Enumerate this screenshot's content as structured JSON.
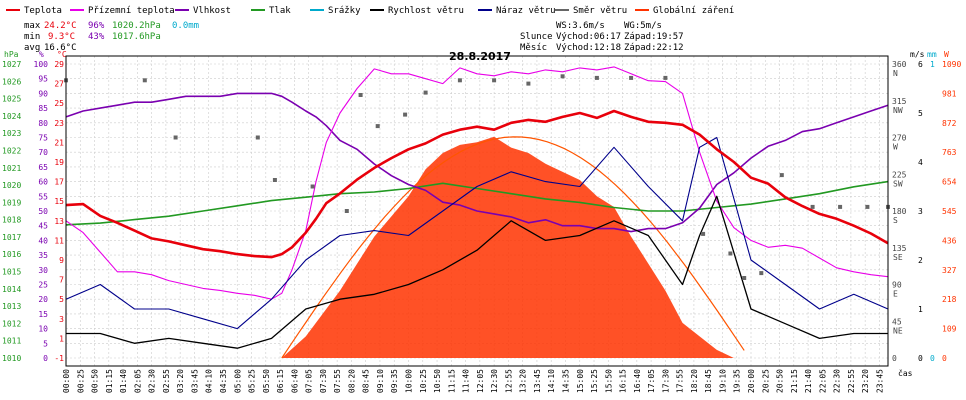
{
  "header": {
    "legend": [
      {
        "label": "Teplota",
        "color": "#e8000b"
      },
      {
        "label": "Přízemní teplota",
        "color": "#e800e8"
      },
      {
        "label": "Vlhkost",
        "color": "#7a00b0"
      },
      {
        "label": "Tlak",
        "color": "#229922"
      },
      {
        "label": "Srážky",
        "color": "#00aacc"
      },
      {
        "label": "Rychlost větru",
        "color": "#000000"
      },
      {
        "label": "Náraz větru",
        "color": "#00008b"
      },
      {
        "label": "Směr větru",
        "color": "#666666"
      },
      {
        "label": "Globální záření",
        "color": "#ff3300"
      }
    ],
    "stats": {
      "max": {
        "label": "max",
        "temp": "24.2°C",
        "hum": "96%",
        "press": "1020.2hPa",
        "rain": "0.0mm"
      },
      "min": {
        "label": "min",
        "temp": "9.3°C",
        "hum": "43%",
        "press": "1017.6hPa"
      },
      "avg": {
        "label": "avg",
        "temp": "16.6°C"
      }
    },
    "wind": {
      "ws": "WS:3.6m/s",
      "wg": "WG:5m/s"
    },
    "sun": {
      "label": "Slunce",
      "rise": "Východ:06:17",
      "set": "Západ:19:57"
    },
    "moon": {
      "label": "Měsíc",
      "rise": "Východ:12:18",
      "set": "Západ:22:12"
    }
  },
  "chart_data": {
    "type": "line",
    "title": "28.8.2017",
    "xlabel": "čas",
    "x_ticks": [
      "00:00",
      "00:25",
      "00:50",
      "01:15",
      "01:40",
      "02:05",
      "02:30",
      "02:55",
      "03:20",
      "03:45",
      "04:10",
      "04:35",
      "05:00",
      "05:25",
      "05:50",
      "06:15",
      "06:40",
      "07:05",
      "07:30",
      "07:55",
      "08:20",
      "08:45",
      "09:10",
      "09:35",
      "10:00",
      "10:25",
      "10:50",
      "11:15",
      "11:40",
      "12:05",
      "12:30",
      "12:55",
      "13:20",
      "13:45",
      "14:10",
      "14:35",
      "15:00",
      "15:25",
      "15:50",
      "16:15",
      "16:40",
      "17:05",
      "17:30",
      "17:55",
      "18:20",
      "18:45",
      "19:10",
      "19:35",
      "20:00",
      "20:25",
      "20:50",
      "21:15",
      "21:40",
      "22:05",
      "22:30",
      "22:55",
      "23:20",
      "23:45"
    ],
    "axes": {
      "pressure": {
        "unit": "hPa",
        "range": [
          1010,
          1027
        ],
        "ticks": [
          "1027",
          "1026",
          "1025",
          "1024",
          "1023",
          "1022",
          "1021",
          "1020",
          "1019",
          "1018",
          "1017",
          "1016",
          "1015",
          "1014",
          "1013",
          "1012",
          "1011",
          "1010"
        ]
      },
      "humidity": {
        "unit": "%",
        "range": [
          0,
          100
        ],
        "ticks": [
          "100",
          "95",
          "90",
          "85",
          "80",
          "75",
          "70",
          "65",
          "60",
          "55",
          "50",
          "45",
          "40",
          "35",
          "30",
          "25",
          "20",
          "15",
          "10",
          "5",
          "0"
        ]
      },
      "temperature": {
        "unit": "°C",
        "range": [
          -1,
          29
        ],
        "ticks": [
          "29",
          "27",
          "25",
          "23",
          "21",
          "19",
          "17",
          "15",
          "13",
          "11",
          "9",
          "7",
          "5",
          "3",
          "1",
          "-1"
        ]
      },
      "wind_direction": {
        "range": [
          0,
          360
        ],
        "ticks": [
          {
            "v": "360",
            "d": "N"
          },
          {
            "v": "315",
            "d": "NW"
          },
          {
            "v": "270",
            "d": "W"
          },
          {
            "v": "225",
            "d": "SW"
          },
          {
            "v": "180",
            "d": "S"
          },
          {
            "v": "135",
            "d": "SE"
          },
          {
            "v": "90",
            "d": "E"
          },
          {
            "v": "45",
            "d": "NE"
          },
          {
            "v": "0",
            "d": ""
          }
        ]
      },
      "wind_speed": {
        "unit": "m/s",
        "range": [
          0,
          6
        ],
        "ticks": [
          "6",
          "5",
          "4",
          "3",
          "2",
          "1",
          "0"
        ]
      },
      "rain": {
        "unit": "mm",
        "range": [
          0,
          1
        ],
        "ticks": [
          "1",
          "0"
        ]
      },
      "radiation": {
        "unit": "W",
        "range": [
          0,
          1090
        ],
        "ticks": [
          "1090",
          "981",
          "872",
          "763",
          "654",
          "545",
          "436",
          "327",
          "218",
          "109",
          "0"
        ]
      }
    },
    "series": [
      {
        "name": "Teplota",
        "color": "#e8000b",
        "unit": "°C",
        "x": [
          0,
          0.5,
          1,
          1.5,
          2,
          2.5,
          3,
          3.5,
          4,
          4.5,
          5,
          5.5,
          6,
          6.3,
          6.6,
          7,
          7.3,
          7.6,
          8,
          8.5,
          9,
          9.5,
          10,
          10.5,
          11,
          11.5,
          12,
          12.5,
          13,
          13.5,
          14,
          14.5,
          15,
          15.5,
          16,
          16.5,
          17,
          17.5,
          18,
          18.5,
          19,
          19.5,
          20,
          20.5,
          21,
          21.5,
          22,
          22.5,
          23,
          23.5,
          24
        ],
        "values": [
          14.6,
          14.7,
          13.5,
          12.8,
          12.0,
          11.2,
          10.9,
          10.5,
          10.1,
          9.9,
          9.6,
          9.4,
          9.3,
          9.6,
          10.3,
          11.8,
          13.2,
          14.8,
          15.8,
          17.2,
          18.4,
          19.4,
          20.3,
          20.9,
          21.8,
          22.3,
          22.6,
          22.3,
          23.0,
          23.3,
          23.1,
          23.6,
          24.0,
          23.5,
          24.2,
          23.6,
          23.1,
          23.0,
          22.8,
          21.8,
          20.3,
          19.0,
          17.4,
          16.8,
          15.4,
          14.5,
          13.7,
          13.2,
          12.5,
          11.7,
          10.7
        ]
      },
      {
        "name": "Přízemní teplota",
        "color": "#e800e8",
        "unit": "°C",
        "x": [
          0,
          0.5,
          1,
          1.5,
          2,
          2.5,
          3,
          3.5,
          4,
          4.5,
          5,
          5.5,
          6,
          6.3,
          6.6,
          7,
          7.3,
          7.6,
          8,
          8.5,
          9,
          9.5,
          10,
          10.5,
          11,
          11.5,
          12,
          12.5,
          13,
          13.5,
          14,
          14.5,
          15,
          15.5,
          16,
          16.5,
          17,
          17.5,
          18,
          18.5,
          19,
          19.5,
          20,
          20.5,
          21,
          21.5,
          22,
          22.5,
          23,
          23.5,
          24
        ],
        "values": [
          13.0,
          11.8,
          9.8,
          7.8,
          7.8,
          7.5,
          6.9,
          6.5,
          6.1,
          5.9,
          5.6,
          5.4,
          5.0,
          5.6,
          8.0,
          12.0,
          17.0,
          21.0,
          24.0,
          26.5,
          28.5,
          28.0,
          28.0,
          27.5,
          27.0,
          28.6,
          28.0,
          27.8,
          28.2,
          28.0,
          28.4,
          28.2,
          28.6,
          28.4,
          28.7,
          28.0,
          27.3,
          27.2,
          26.0,
          20.0,
          15.0,
          12.3,
          11.0,
          10.3,
          10.5,
          10.2,
          9.2,
          8.2,
          7.8,
          7.5,
          7.3
        ]
      },
      {
        "name": "Vlhkost",
        "color": "#7a00b0",
        "unit": "%",
        "x": [
          0,
          0.5,
          1,
          1.5,
          2,
          2.5,
          3,
          3.5,
          4,
          4.5,
          5,
          5.5,
          6,
          6.3,
          6.6,
          7,
          7.3,
          7.6,
          8,
          8.5,
          9,
          9.5,
          10,
          10.5,
          11,
          11.5,
          12,
          12.5,
          13,
          13.5,
          14,
          14.5,
          15,
          15.5,
          16,
          16.5,
          17,
          17.5,
          18,
          18.5,
          19,
          19.5,
          20,
          20.5,
          21,
          21.5,
          22,
          22.5,
          23,
          23.5,
          24
        ],
        "values": [
          82,
          84,
          85,
          86,
          87,
          87,
          88,
          89,
          89,
          89,
          90,
          90,
          90,
          89,
          87,
          84,
          82,
          79,
          74,
          71,
          66,
          62,
          59,
          57,
          53,
          52,
          50,
          49,
          48,
          46,
          47,
          45,
          45,
          44,
          44,
          43,
          44,
          44,
          46,
          51,
          59,
          63,
          68,
          72,
          74,
          77,
          78,
          80,
          82,
          84,
          86
        ]
      },
      {
        "name": "Tlak",
        "color": "#229922",
        "unit": "hPa",
        "x": [
          0,
          1,
          2,
          3,
          4,
          5,
          6,
          7,
          8,
          9,
          10,
          11,
          12,
          13,
          14,
          15,
          16,
          17,
          18,
          19,
          20,
          21,
          22,
          23,
          24
        ],
        "values": [
          1017.7,
          1017.8,
          1018.0,
          1018.2,
          1018.5,
          1018.8,
          1019.1,
          1019.3,
          1019.5,
          1019.6,
          1019.8,
          1020.1,
          1019.8,
          1019.5,
          1019.2,
          1019.0,
          1018.7,
          1018.5,
          1018.5,
          1018.7,
          1018.9,
          1019.2,
          1019.5,
          1019.9,
          1020.2
        ]
      },
      {
        "name": "Globální záření",
        "color": "#ff3300",
        "unit": "W",
        "x": [
          6.3,
          7,
          8,
          9,
          10,
          10.5,
          11,
          11.5,
          12,
          12.5,
          13,
          13.5,
          14,
          14.5,
          15,
          15.5,
          16,
          16.5,
          17,
          17.5,
          18,
          18.5,
          19,
          19.5
        ],
        "values": [
          0,
          80,
          250,
          450,
          600,
          700,
          760,
          790,
          800,
          820,
          780,
          760,
          720,
          690,
          660,
          600,
          560,
          450,
          350,
          250,
          130,
          80,
          30,
          0
        ]
      },
      {
        "name": "Rychlost větru",
        "color": "#000000",
        "unit": "m/s",
        "x": [
          0,
          1,
          2,
          3,
          4,
          5,
          6,
          7,
          8,
          9,
          10,
          11,
          12,
          13,
          14,
          15,
          16,
          17,
          18,
          18.5,
          19,
          20,
          21,
          22,
          23,
          24
        ],
        "values": [
          0.5,
          0.5,
          0.3,
          0.4,
          0.3,
          0.2,
          0.4,
          1.0,
          1.2,
          1.3,
          1.5,
          1.8,
          2.2,
          2.8,
          2.4,
          2.5,
          2.8,
          2.5,
          1.5,
          2.5,
          3.3,
          1.0,
          0.7,
          0.4,
          0.5,
          0.5
        ]
      },
      {
        "name": "Náraz větru",
        "color": "#00008b",
        "unit": "m/s",
        "x": [
          0,
          1,
          2,
          3,
          4,
          5,
          6,
          7,
          8,
          9,
          10,
          11,
          12,
          13,
          14,
          15,
          16,
          17,
          18,
          18.5,
          19,
          20,
          21,
          22,
          23,
          24
        ],
        "values": [
          1.2,
          1.5,
          1.0,
          1.0,
          0.8,
          0.6,
          1.2,
          2.0,
          2.5,
          2.6,
          2.5,
          3.0,
          3.5,
          3.8,
          3.6,
          3.5,
          4.3,
          3.5,
          2.8,
          4.3,
          4.5,
          2.0,
          1.5,
          1.0,
          1.3,
          1.0
        ]
      },
      {
        "name": "Směr větru",
        "color": "#666666",
        "unit": "°",
        "x": [
          0,
          2.3,
          3.2,
          5.6,
          6.1,
          7.2,
          8.2,
          8.6,
          9.1,
          9.9,
          10.5,
          11.5,
          12.5,
          13.5,
          14.5,
          15.5,
          16.5,
          17.5,
          18.6,
          19.4,
          19.8,
          20.3,
          20.9,
          21.8,
          22.6,
          23.4,
          24
        ],
        "values": [
          340,
          340,
          270,
          270,
          218,
          210,
          180,
          322,
          284,
          298,
          325,
          340,
          340,
          336,
          345,
          343,
          343,
          343,
          152,
          128,
          98,
          104,
          224,
          185,
          185,
          185,
          185
        ]
      }
    ]
  }
}
